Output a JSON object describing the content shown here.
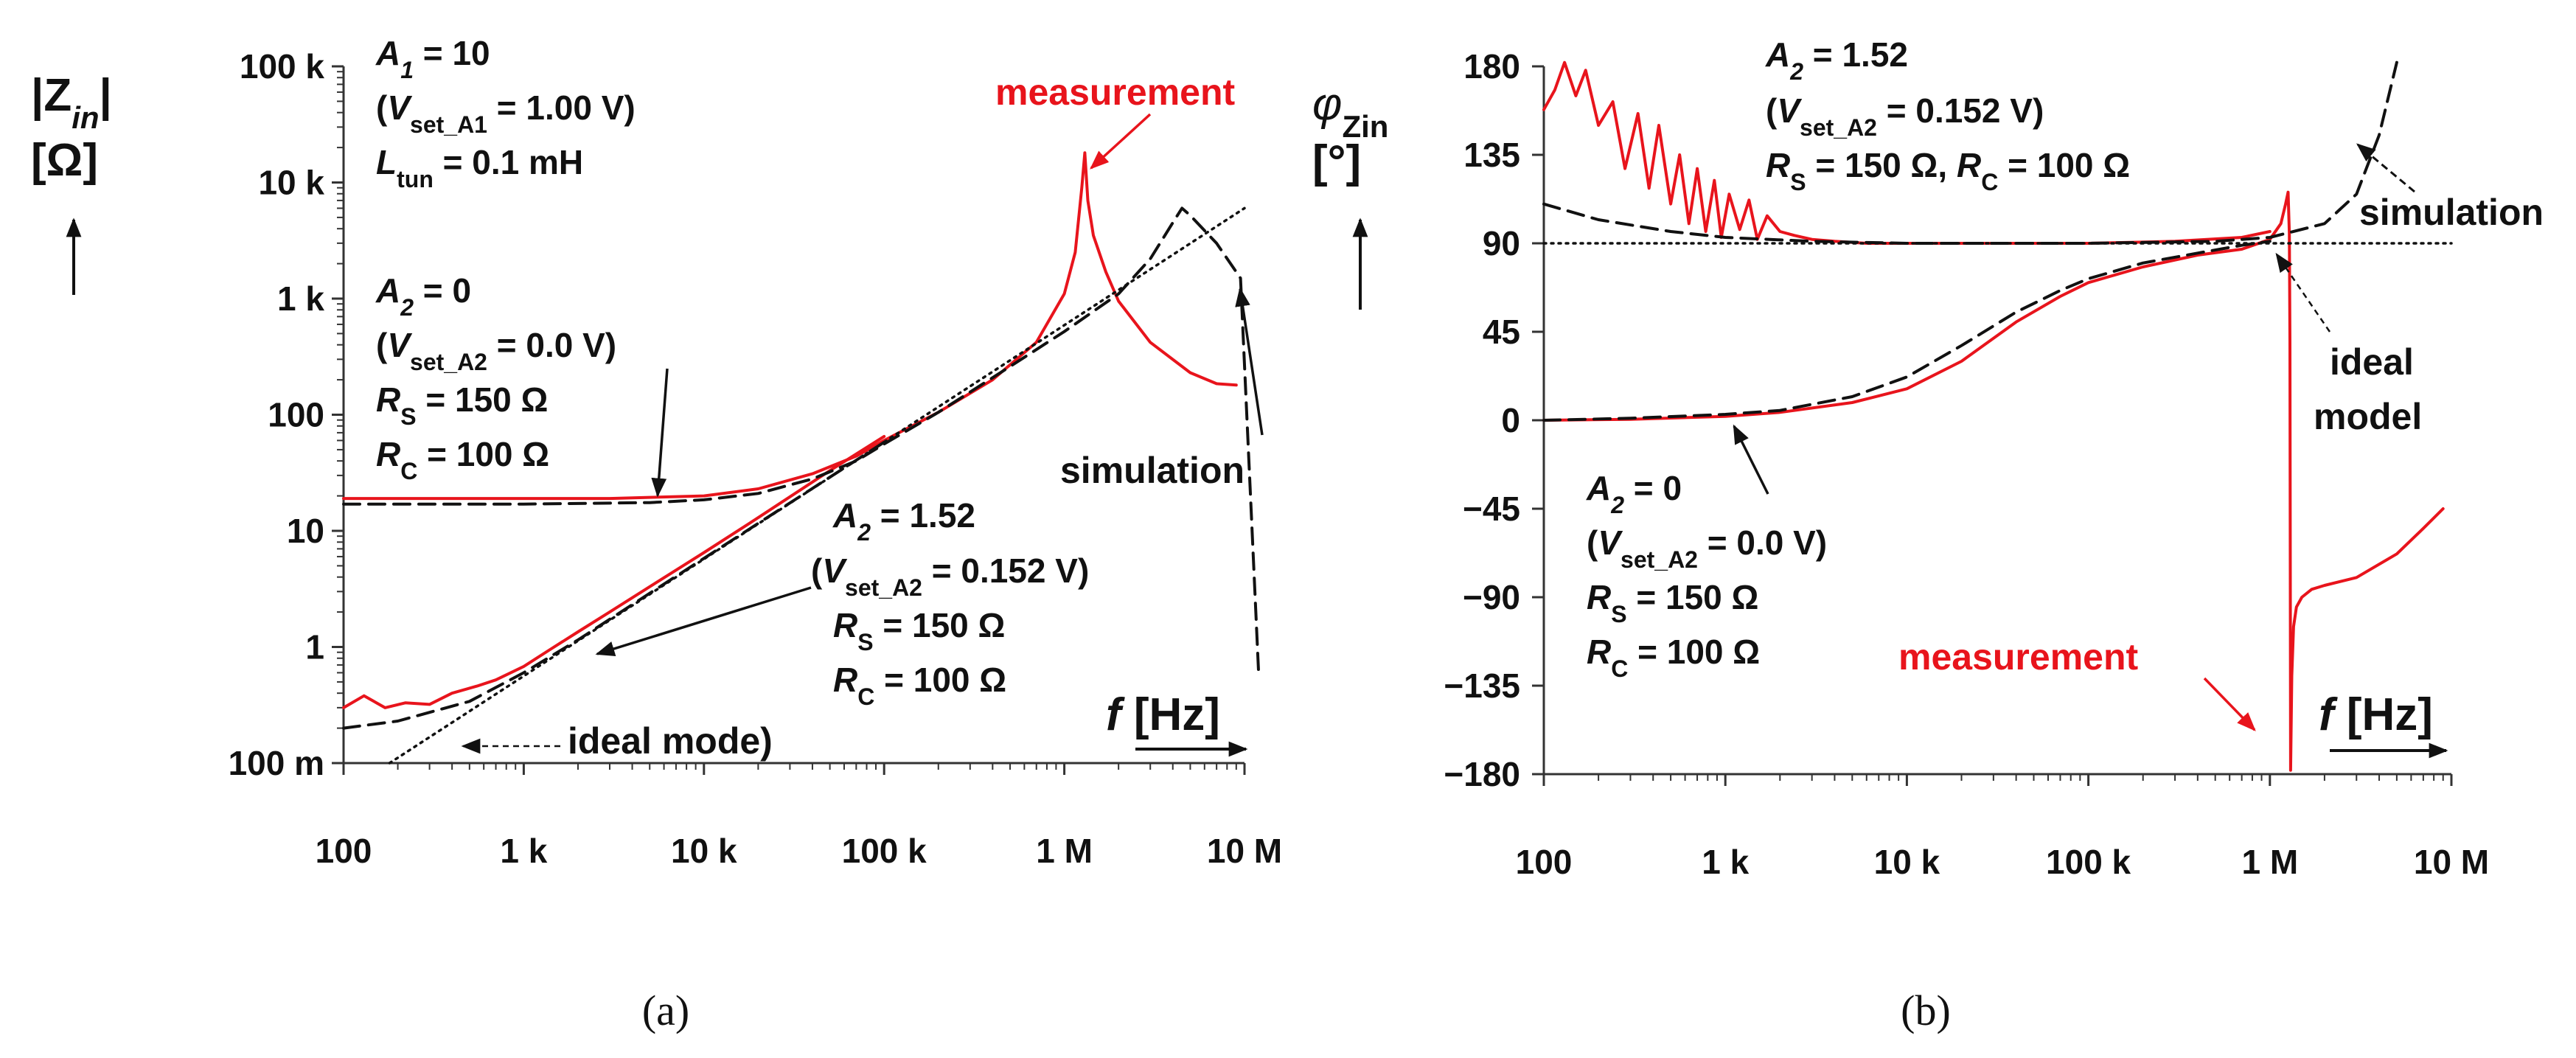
{
  "figure": {
    "panel_a_label": "(a)",
    "panel_b_label": "(b)",
    "colors": {
      "measurement": "#e8141c",
      "simulation": "#111111",
      "ideal": "#111111",
      "axis": "#333333"
    }
  },
  "chart_data": [
    {
      "type": "line",
      "panel": "a",
      "xscale": "log",
      "yscale": "log",
      "xlim": [
        100,
        10000000
      ],
      "ylim": [
        0.1,
        100000
      ],
      "xticks": [
        {
          "v": 100,
          "label": "100"
        },
        {
          "v": 1000,
          "label": "1 k"
        },
        {
          "v": 10000,
          "label": "10 k"
        },
        {
          "v": 100000,
          "label": "100 k"
        },
        {
          "v": 1000000,
          "label": "1 M"
        },
        {
          "v": 10000000,
          "label": "10 M"
        }
      ],
      "yticks": [
        {
          "v": 100000,
          "label": "100 k"
        },
        {
          "v": 10000,
          "label": "10 k"
        },
        {
          "v": 1000,
          "label": "1 k"
        },
        {
          "v": 100,
          "label": "100"
        },
        {
          "v": 10,
          "label": "10"
        },
        {
          "v": 1,
          "label": "1"
        },
        {
          "v": 0.1,
          "label": "100 m"
        }
      ],
      "ylabel_main": "|Z",
      "ylabel_sub": "in",
      "ylabel_end": "|",
      "ylabel_unit": "[Ω]",
      "xlabel_var": "f",
      "xlabel_unit": " [Hz]",
      "legend_labels": {
        "measurement": "measurement",
        "simulation": "simulation",
        "ideal": "ideal mode)"
      },
      "annotations": {
        "a1": {
          "var": "A",
          "sub": "1",
          "rest": " = 10"
        },
        "vset_a1": {
          "open": "(",
          "var": "V",
          "sub": "set_A1",
          "rest": " =  1.00 V)"
        },
        "ltun": {
          "var": "L",
          "sub": "tun",
          "rest": " = 0.1 mH"
        },
        "a2_zero": {
          "var": "A",
          "sub": "2",
          "rest": " = 0"
        },
        "vset_a2_zero": {
          "open": "(",
          "var": "V",
          "sub": "set_A2",
          "rest": " =  0.0 V)"
        },
        "rs_zero": {
          "var": "R",
          "sub": "S",
          "rest": " = 150 Ω"
        },
        "rc_zero": {
          "var": "R",
          "sub": "C",
          "rest": " = 100 Ω"
        },
        "a2_152": {
          "var": "A",
          "sub": "2",
          "rest": " = 1.52"
        },
        "vset_a2_152": {
          "open": "(",
          "var": "V",
          "sub": "set_A2",
          "rest": " =  0.152 V)"
        },
        "rs_152": {
          "var": "R",
          "sub": "S",
          "rest": " = 150 Ω"
        },
        "rc_152": {
          "var": "R",
          "sub": "C",
          "rest": " = 100 Ω"
        }
      },
      "series": [
        {
          "name": "measurement (A2 = 0)",
          "style": "solid-red",
          "x": [
            100,
            200,
            500,
            1000,
            3000,
            10000,
            20000,
            40000,
            70000,
            100000,
            200000,
            400000,
            700000,
            1000000,
            1150000,
            1250000,
            1300000,
            1350000,
            1450000,
            1700000,
            2000000,
            3000000,
            5000000,
            7000000,
            9000000
          ],
          "y": [
            19,
            19,
            19,
            19,
            19,
            20,
            23,
            31,
            44,
            60,
            105,
            200,
            420,
            1100,
            2500,
            9000,
            18000,
            7000,
            3500,
            1700,
            950,
            420,
            230,
            185,
            180
          ]
        },
        {
          "name": "measurement (A2 = 1.52)",
          "style": "solid-red",
          "x": [
            100,
            130,
            170,
            220,
            300,
            400,
            550,
            700,
            1000,
            1400,
            2000,
            3000,
            5000,
            10000,
            20000,
            50000,
            100000
          ],
          "y": [
            0.3,
            0.38,
            0.3,
            0.33,
            0.32,
            0.4,
            0.46,
            0.52,
            0.68,
            0.95,
            1.35,
            2.0,
            3.3,
            6.5,
            13,
            33,
            65
          ]
        },
        {
          "name": "simulation (A2 = 0)",
          "style": "dashed",
          "x": [
            100,
            1000,
            5000,
            10000,
            20000,
            40000,
            70000,
            100000,
            200000,
            500000,
            1000000,
            2000000,
            3000000,
            4000000,
            4500000,
            5000000,
            7000000,
            9500000,
            12000000
          ],
          "y": [
            17,
            17,
            17.5,
            18.5,
            21,
            28,
            40,
            56,
            105,
            260,
            520,
            1100,
            2200,
            4500,
            6000,
            5200,
            3000,
            1500,
            0.55
          ]
        },
        {
          "name": "simulation (A2 = 1.52)",
          "style": "dashed",
          "x": [
            100,
            200,
            500,
            1000,
            2000,
            5000,
            10000,
            100000
          ],
          "y": [
            0.2,
            0.23,
            0.34,
            0.6,
            1.15,
            2.9,
            5.8,
            58
          ]
        },
        {
          "name": "ideal model",
          "style": "dotted",
          "x": [
            180,
            10000000
          ],
          "y": [
            0.1,
            6000
          ]
        }
      ]
    },
    {
      "type": "line",
      "panel": "b",
      "xscale": "log",
      "yscale": "linear",
      "xlim": [
        100,
        10000000
      ],
      "ylim": [
        -180,
        180
      ],
      "xticks": [
        {
          "v": 100,
          "label": "100"
        },
        {
          "v": 1000,
          "label": "1 k"
        },
        {
          "v": 10000,
          "label": "10 k"
        },
        {
          "v": 100000,
          "label": "100 k"
        },
        {
          "v": 1000000,
          "label": "1 M"
        },
        {
          "v": 10000000,
          "label": "10 M"
        }
      ],
      "yticks": [
        {
          "v": 180,
          "label": "180"
        },
        {
          "v": 135,
          "label": "135"
        },
        {
          "v": 90,
          "label": "90"
        },
        {
          "v": 45,
          "label": "45"
        },
        {
          "v": 0,
          "label": "0"
        },
        {
          "v": -45,
          "label": "−45"
        },
        {
          "v": -90,
          "label": "−90"
        },
        {
          "v": -135,
          "label": "−135"
        },
        {
          "v": -180,
          "label": "−180"
        }
      ],
      "ylabel_main": "φ",
      "ylabel_sub": "Zin",
      "ylabel_unit": "[°]",
      "xlabel_var": "f",
      "xlabel_unit": " [Hz]",
      "legend_labels": {
        "measurement": "measurement",
        "simulation": "simulation",
        "ideal_1": "ideal",
        "ideal_2": "model"
      },
      "annotations": {
        "a2_152": {
          "var": "A",
          "sub": "2",
          "rest": " = 1.52"
        },
        "vset_a2_152": {
          "open": "(",
          "var": "V",
          "sub": "set_A2",
          "rest": " =  0.152 V)"
        },
        "rs_rc_152": {
          "var": "R",
          "sub": "S",
          "mid": " = 150 Ω, ",
          "var2": "R",
          "sub2": "C",
          "rest": " = 100 Ω"
        },
        "a2_zero": {
          "var": "A",
          "sub": "2",
          "rest": " = 0"
        },
        "vset_a2_zero": {
          "open": "(",
          "var": "V",
          "sub": "set_A2",
          "rest": " =  0.0 V)"
        },
        "rs_zero": {
          "var": "R",
          "sub": "S",
          "rest": " = 150 Ω"
        },
        "rc_zero": {
          "var": "R",
          "sub": "C",
          "rest": " = 100 Ω"
        }
      },
      "series": [
        {
          "name": "measurement (A2 = 1.52)",
          "style": "solid-red",
          "x": [
            100,
            115,
            130,
            150,
            170,
            200,
            240,
            280,
            330,
            380,
            430,
            500,
            560,
            630,
            700,
            780,
            870,
            950,
            1050,
            1200,
            1350,
            1500,
            1700,
            2000,
            2400,
            3000,
            4000,
            6000,
            10000,
            30000,
            100000,
            300000,
            700000,
            1000000
          ],
          "y": [
            158,
            168,
            182,
            165,
            178,
            150,
            162,
            128,
            156,
            118,
            150,
            110,
            135,
            100,
            128,
            96,
            122,
            93,
            115,
            97,
            112,
            92,
            104,
            96,
            94,
            92,
            91,
            90,
            90,
            90,
            90,
            91,
            93,
            96
          ]
        },
        {
          "name": "measurement (A2 = 0)",
          "style": "solid-red",
          "x": [
            100,
            300,
            1000,
            2000,
            5000,
            10000,
            20000,
            40000,
            70000,
            100000,
            200000,
            400000,
            700000,
            1000000,
            1150000,
            1220000,
            1260000,
            1280000,
            1290000,
            1300000,
            1320000,
            1350000,
            1400000,
            1500000,
            1700000,
            2000000,
            3000000,
            5000000,
            7000000,
            9000000
          ],
          "y": [
            0,
            0.5,
            2,
            4,
            9,
            16,
            30,
            50,
            63,
            70,
            78,
            84,
            87,
            92,
            100,
            110,
            116,
            95,
            40,
            -178,
            -130,
            -105,
            -95,
            -90,
            -86,
            -84,
            -80,
            -68,
            -55,
            -45
          ]
        },
        {
          "name": "simulation (A2 = 1.52)",
          "style": "dashed",
          "x": [
            100,
            200,
            500,
            1000,
            3000,
            10000,
            100000,
            500000,
            1000000,
            2000000,
            3000000,
            4000000,
            5000000
          ],
          "y": [
            110,
            102,
            96,
            93,
            91,
            90,
            90,
            91,
            93,
            100,
            115,
            145,
            182
          ]
        },
        {
          "name": "simulation (A2 = 0)",
          "style": "dashed",
          "x": [
            100,
            300,
            1000,
            2000,
            5000,
            10000,
            20000,
            40000,
            70000,
            100000,
            200000,
            400000,
            700000,
            1000000
          ],
          "y": [
            0,
            1,
            3,
            5,
            12,
            22,
            38,
            55,
            66,
            72,
            80,
            85,
            89,
            91
          ]
        },
        {
          "name": "ideal model",
          "style": "dotted",
          "x": [
            100,
            10000000
          ],
          "y": [
            90,
            90
          ]
        }
      ]
    }
  ]
}
